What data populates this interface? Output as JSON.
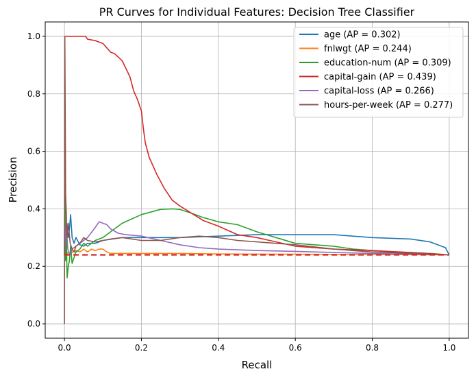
{
  "chart_data": {
    "type": "line",
    "title": "PR Curves for Individual Features: Decision Tree Classifier",
    "xlabel": "Recall",
    "ylabel": "Precision",
    "xlim": [
      -0.05,
      1.05
    ],
    "ylim": [
      -0.05,
      1.05
    ],
    "xticks": [
      0.0,
      0.2,
      0.4,
      0.6,
      0.8,
      1.0
    ],
    "xtick_labels": [
      "0.0",
      "0.2",
      "0.4",
      "0.6",
      "0.8",
      "1.0"
    ],
    "yticks": [
      0.0,
      0.2,
      0.4,
      0.6,
      0.8,
      1.0
    ],
    "ytick_labels": [
      "0.0",
      "0.2",
      "0.4",
      "0.6",
      "0.8",
      "1.0"
    ],
    "grid": true,
    "legend_position": "top-right",
    "baseline": {
      "y": 0.24,
      "color": "#d62728",
      "style": "dashed"
    },
    "series": [
      {
        "name": "age (AP = 0.302)",
        "color": "#1f77b4",
        "x": [
          0.0,
          0.003,
          0.006,
          0.01,
          0.013,
          0.016,
          0.02,
          0.025,
          0.03,
          0.04,
          0.05,
          0.06,
          0.08,
          0.1,
          0.15,
          0.2,
          0.25,
          0.3,
          0.4,
          0.5,
          0.6,
          0.7,
          0.8,
          0.9,
          0.95,
          0.99,
          1.0
        ],
        "y": [
          0.24,
          0.3,
          0.35,
          0.3,
          0.33,
          0.38,
          0.3,
          0.28,
          0.3,
          0.275,
          0.27,
          0.28,
          0.28,
          0.29,
          0.3,
          0.3,
          0.3,
          0.3,
          0.305,
          0.31,
          0.31,
          0.31,
          0.3,
          0.295,
          0.285,
          0.265,
          0.24
        ]
      },
      {
        "name": "fnlwgt (AP = 0.244)",
        "color": "#ff7f0e",
        "x": [
          0.0,
          0.003,
          0.006,
          0.01,
          0.015,
          0.02,
          0.025,
          0.03,
          0.04,
          0.05,
          0.06,
          0.07,
          0.08,
          0.09,
          0.1,
          0.11,
          0.12,
          0.15,
          0.2,
          0.3,
          0.4,
          0.6,
          0.8,
          1.0
        ],
        "y": [
          0.24,
          0.26,
          0.24,
          0.25,
          0.24,
          0.25,
          0.25,
          0.255,
          0.25,
          0.26,
          0.25,
          0.26,
          0.255,
          0.26,
          0.26,
          0.25,
          0.245,
          0.245,
          0.245,
          0.245,
          0.243,
          0.242,
          0.241,
          0.24
        ]
      },
      {
        "name": "education-num (AP = 0.309)",
        "color": "#2ca02c",
        "x": [
          0.0,
          0.001,
          0.002,
          0.003,
          0.005,
          0.007,
          0.01,
          0.013,
          0.016,
          0.02,
          0.03,
          0.04,
          0.05,
          0.06,
          0.08,
          0.1,
          0.12,
          0.15,
          0.2,
          0.25,
          0.28,
          0.3,
          0.33,
          0.36,
          0.4,
          0.45,
          0.5,
          0.55,
          0.6,
          0.65,
          0.7,
          0.75,
          0.8,
          0.85,
          0.9,
          0.95,
          1.0
        ],
        "y": [
          0.24,
          0.5,
          0.4,
          0.22,
          0.3,
          0.16,
          0.2,
          0.22,
          0.27,
          0.21,
          0.25,
          0.26,
          0.28,
          0.27,
          0.29,
          0.3,
          0.32,
          0.35,
          0.38,
          0.398,
          0.4,
          0.398,
          0.385,
          0.37,
          0.355,
          0.345,
          0.32,
          0.3,
          0.28,
          0.275,
          0.27,
          0.26,
          0.255,
          0.25,
          0.248,
          0.245,
          0.24
        ]
      },
      {
        "name": "capital-gain (AP = 0.439)",
        "color": "#d62728",
        "x": [
          0.0,
          0.001,
          0.005,
          0.01,
          0.03,
          0.055,
          0.06,
          0.08,
          0.1,
          0.11,
          0.12,
          0.13,
          0.15,
          0.17,
          0.18,
          0.19,
          0.2,
          0.205,
          0.21,
          0.22,
          0.24,
          0.26,
          0.28,
          0.3,
          0.33,
          0.36,
          0.4,
          0.45,
          0.5,
          0.55,
          0.6,
          0.7,
          0.8,
          0.9,
          1.0
        ],
        "y": [
          0.24,
          1.0,
          1.0,
          1.0,
          1.0,
          1.0,
          0.99,
          0.985,
          0.975,
          0.96,
          0.945,
          0.94,
          0.915,
          0.86,
          0.81,
          0.78,
          0.74,
          0.68,
          0.63,
          0.58,
          0.52,
          0.47,
          0.43,
          0.41,
          0.385,
          0.36,
          0.34,
          0.31,
          0.3,
          0.285,
          0.27,
          0.26,
          0.255,
          0.248,
          0.24
        ]
      },
      {
        "name": "capital-loss (AP = 0.266)",
        "color": "#9467bd",
        "x": [
          0.0,
          0.002,
          0.005,
          0.008,
          0.01,
          0.015,
          0.02,
          0.03,
          0.04,
          0.06,
          0.08,
          0.09,
          0.1,
          0.11,
          0.12,
          0.14,
          0.16,
          0.2,
          0.25,
          0.3,
          0.35,
          0.4,
          0.5,
          0.6,
          0.7,
          0.8,
          0.9,
          1.0
        ],
        "y": [
          0.24,
          0.3,
          0.35,
          0.27,
          0.25,
          0.24,
          0.26,
          0.27,
          0.28,
          0.3,
          0.335,
          0.355,
          0.35,
          0.345,
          0.33,
          0.315,
          0.31,
          0.305,
          0.29,
          0.275,
          0.265,
          0.26,
          0.255,
          0.252,
          0.248,
          0.245,
          0.242,
          0.24
        ]
      },
      {
        "name": "hours-per-week (AP = 0.277)",
        "color": "#8c564b",
        "x": [
          0.0,
          0.001,
          0.003,
          0.005,
          0.007,
          0.01,
          0.015,
          0.02,
          0.025,
          0.03,
          0.04,
          0.05,
          0.06,
          0.08,
          0.1,
          0.12,
          0.15,
          0.2,
          0.25,
          0.3,
          0.35,
          0.4,
          0.45,
          0.5,
          0.6,
          0.7,
          0.8,
          0.9,
          1.0
        ],
        "y": [
          0.0,
          1.0,
          0.45,
          0.38,
          0.3,
          0.35,
          0.28,
          0.26,
          0.25,
          0.27,
          0.28,
          0.3,
          0.29,
          0.285,
          0.29,
          0.295,
          0.3,
          0.29,
          0.29,
          0.3,
          0.305,
          0.3,
          0.29,
          0.285,
          0.275,
          0.26,
          0.25,
          0.245,
          0.24
        ]
      }
    ]
  }
}
